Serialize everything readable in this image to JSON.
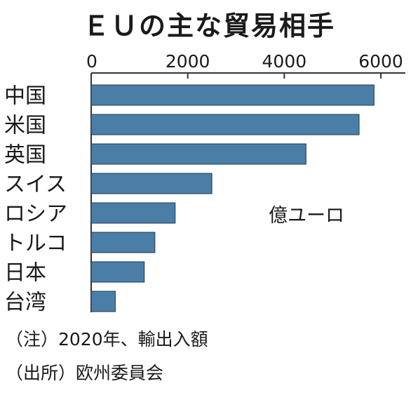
{
  "title": "ＥＵの主な貿易相手",
  "unit_label": "億ユーロ",
  "notes": {
    "note1": "（注）2020年、輸出入額",
    "note2": "（出所）欧州委員会"
  },
  "colors": {
    "bar": "#4a7ea6",
    "bar_stroke": "#1f3a4f",
    "axis": "#333333"
  },
  "chart_data": {
    "type": "bar",
    "orientation": "horizontal",
    "title": "ＥＵの主な貿易相手",
    "categories": [
      "中国",
      "米国",
      "英国",
      "スイス",
      "ロシア",
      "トルコ",
      "日本",
      "台湾"
    ],
    "values": [
      5860,
      5550,
      4450,
      2500,
      1740,
      1320,
      1100,
      500
    ],
    "xlim": [
      0,
      6500
    ],
    "xticks": [
      "0",
      "2000",
      "4000",
      "6000"
    ],
    "xtick_values": [
      0,
      2000,
      4000,
      6000
    ],
    "grid": false
  }
}
